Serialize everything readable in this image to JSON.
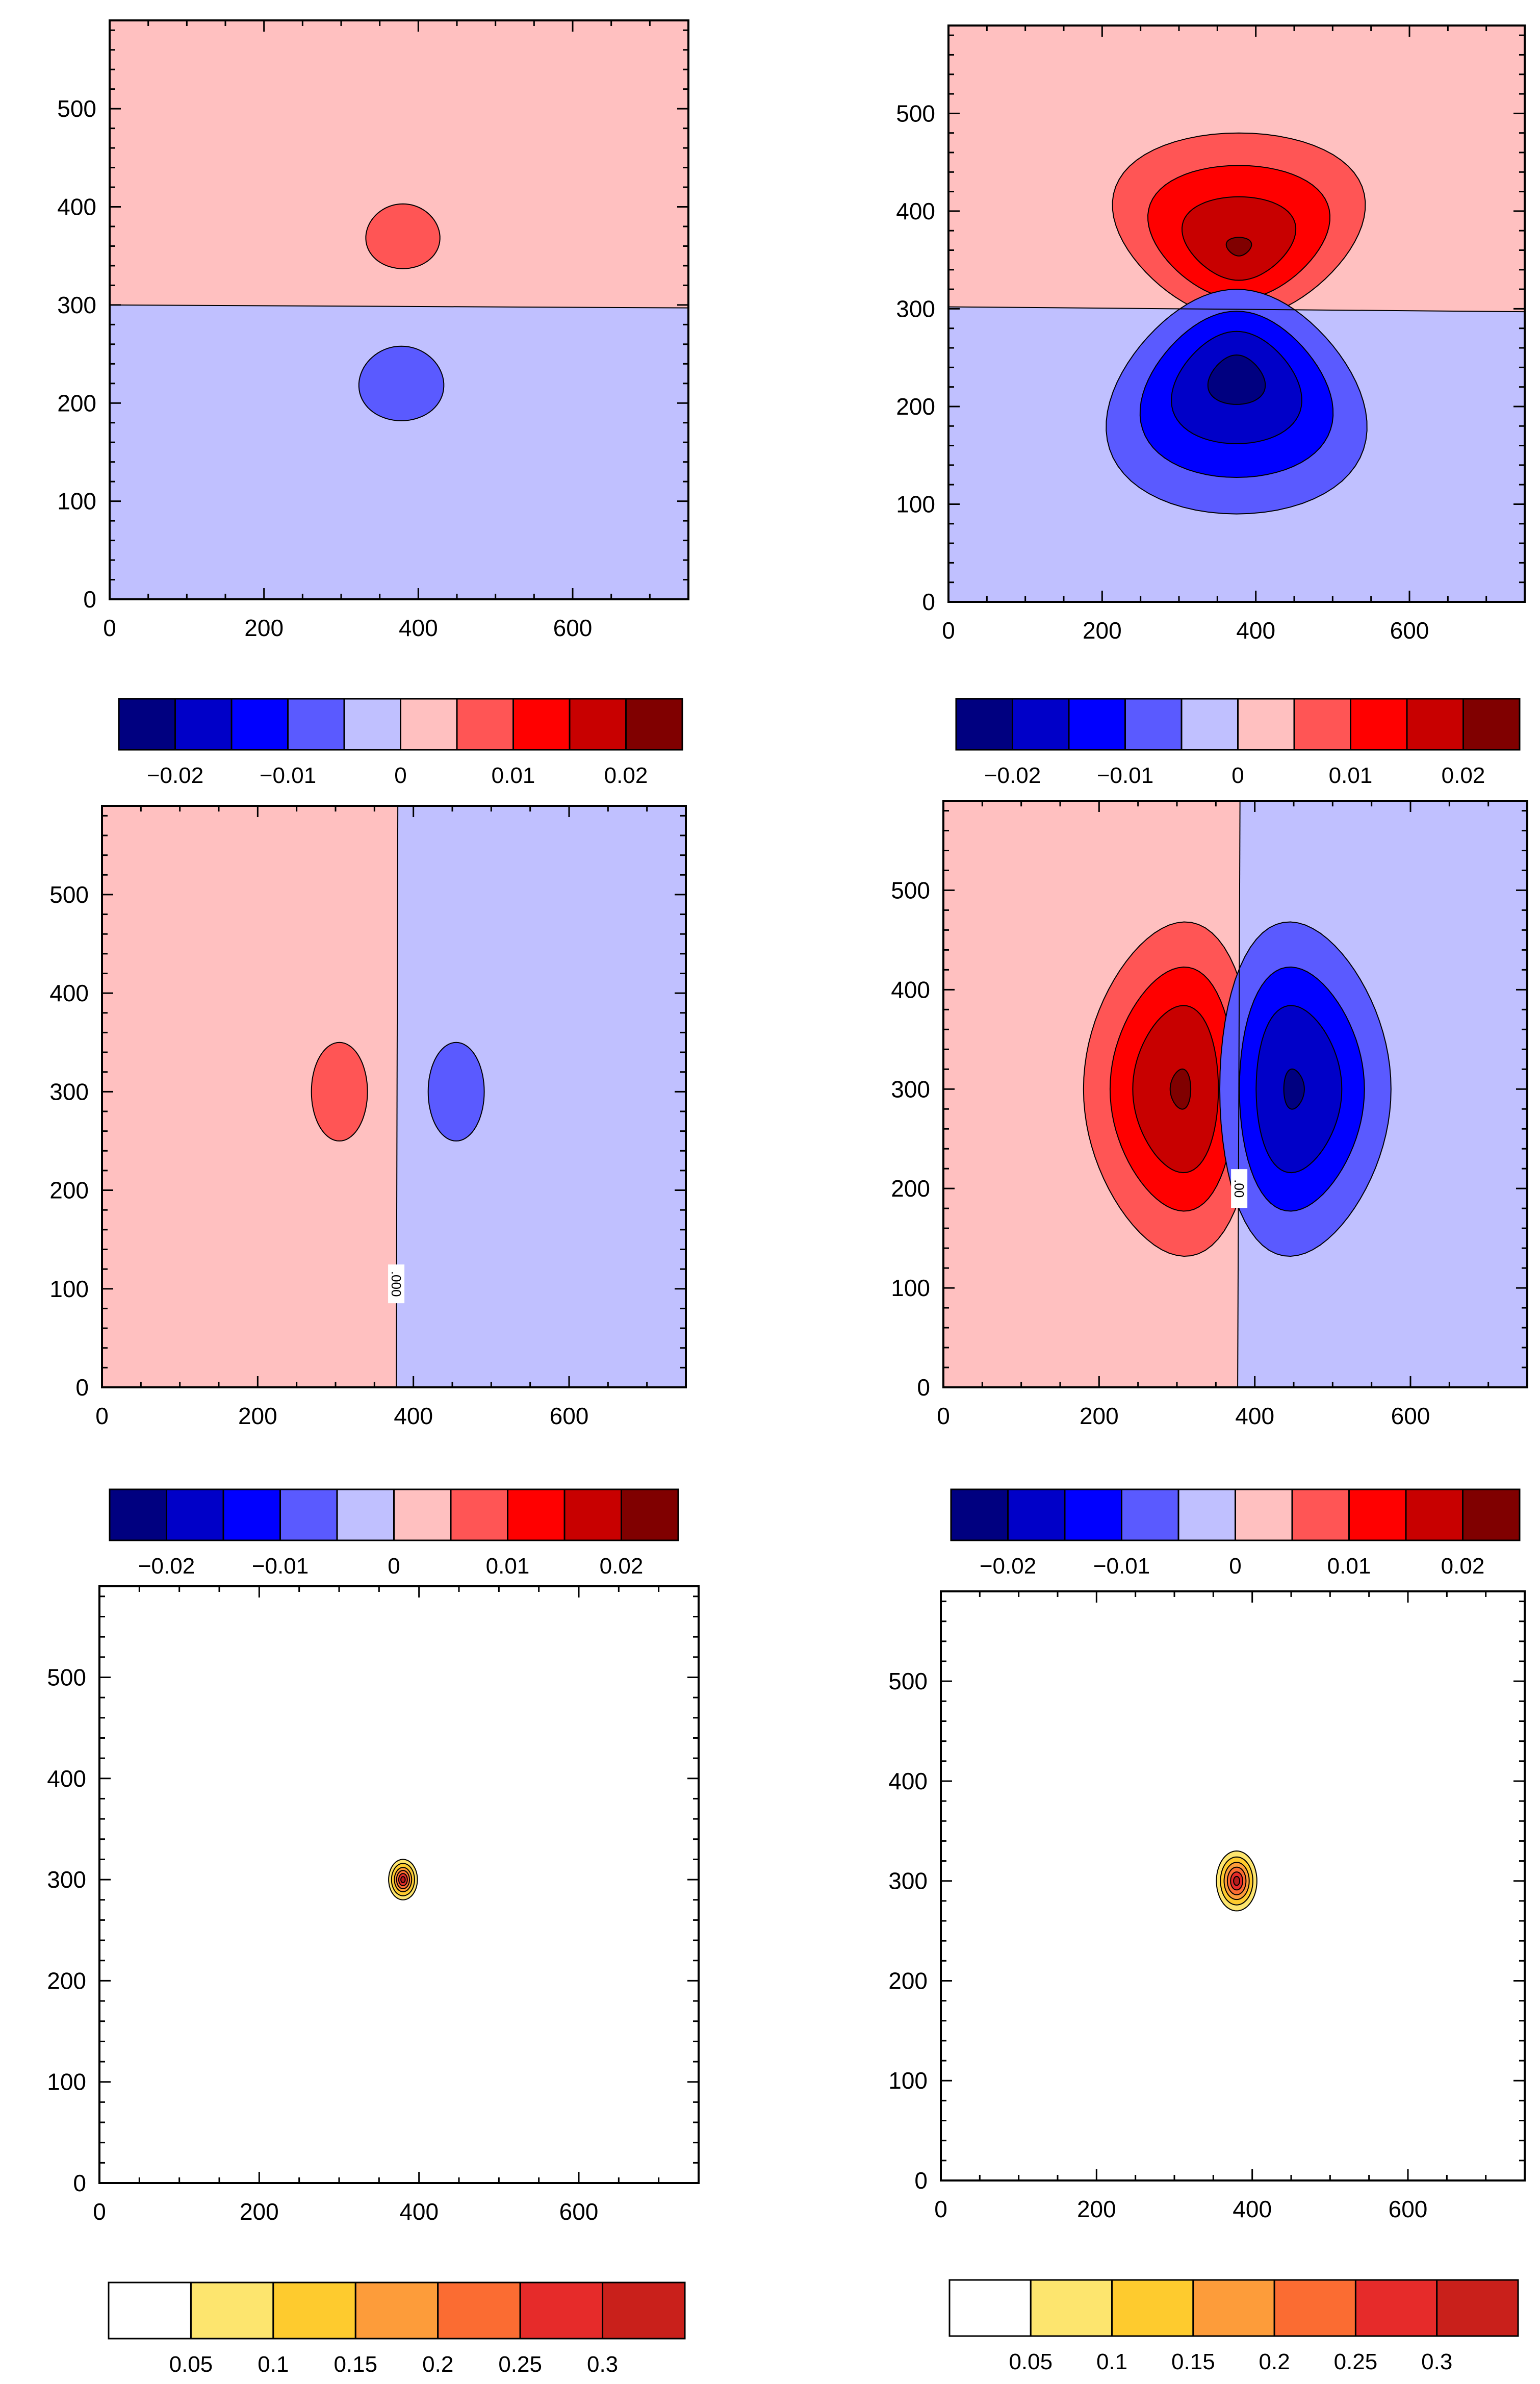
{
  "figure": {
    "panel_count": 6,
    "colorbar_count": 6
  },
  "chart_data": [
    {
      "id": "top-left",
      "type": "contour",
      "title": "",
      "xlabel": "",
      "ylabel": "",
      "xlim": [
        0,
        750
      ],
      "ylim": [
        0,
        590
      ],
      "xticks": [
        "0",
        "200",
        "400",
        "600"
      ],
      "yticks": [
        "0",
        "100",
        "200",
        "300",
        "400",
        "500"
      ],
      "xtick_values": [
        0,
        200,
        400,
        600
      ],
      "ytick_values": [
        0,
        100,
        200,
        300,
        400,
        500
      ],
      "background_split": "horizontal",
      "zero_line": [
        [
          0,
          300
        ],
        [
          750,
          297
        ]
      ],
      "fields": [
        {
          "name": "positive-lobe",
          "center": [
            380,
            370
          ],
          "radius": [
            48,
            33
          ],
          "levels": [
            "#ff5555"
          ]
        },
        {
          "name": "negative-lobe",
          "center": [
            378,
            220
          ],
          "radius": [
            55,
            38
          ],
          "levels": [
            "#5a5aff"
          ]
        }
      ],
      "colorbar": {
        "colors": [
          "#000080",
          "#0000c8",
          "#0000ff",
          "#5a5aff",
          "#c0c0ff",
          "#ffc0c0",
          "#ff5555",
          "#ff0000",
          "#c80000",
          "#800000"
        ],
        "labels": [
          "-0.02",
          "-0.01",
          "0",
          "0.01",
          "0.02"
        ],
        "label_edges": [
          1,
          3,
          5,
          7,
          9
        ]
      }
    },
    {
      "id": "top-right",
      "type": "contour",
      "title": "",
      "xlabel": "",
      "ylabel": "",
      "xlim": [
        0,
        750
      ],
      "ylim": [
        0,
        590
      ],
      "xticks": [
        "0",
        "200",
        "400",
        "600"
      ],
      "yticks": [
        "0",
        "100",
        "200",
        "300",
        "400",
        "500"
      ],
      "xtick_values": [
        0,
        200,
        400,
        600
      ],
      "ytick_values": [
        0,
        100,
        200,
        300,
        400,
        500
      ],
      "background_split": "horizontal",
      "zero_line": [
        [
          0,
          302
        ],
        [
          750,
          297
        ]
      ],
      "fields": [
        {
          "name": "positive-lobe",
          "center": [
            378,
            385
          ],
          "radius": [
            160,
            95
          ],
          "levels": [
            "#ff5555",
            "#ff0000",
            "#c80000",
            "#800000"
          ],
          "scales": [
            1,
            0.72,
            0.45,
            0.1
          ]
        },
        {
          "name": "negative-lobe",
          "center": [
            375,
            205
          ],
          "radius": [
            165,
            115
          ],
          "levels": [
            "#5a5aff",
            "#0000ff",
            "#0000c8",
            "#000080"
          ],
          "scales": [
            1,
            0.74,
            0.5,
            0.22
          ]
        }
      ],
      "colorbar": {
        "colors": [
          "#000080",
          "#0000c8",
          "#0000ff",
          "#5a5aff",
          "#c0c0ff",
          "#ffc0c0",
          "#ff5555",
          "#ff0000",
          "#c80000",
          "#800000"
        ],
        "labels": [
          "-0.02",
          "-0.01",
          "0",
          "0.01",
          "0.02"
        ],
        "label_edges": [
          1,
          3,
          5,
          7,
          9
        ]
      }
    },
    {
      "id": "middle-left",
      "type": "contour",
      "title": "",
      "xlabel": "",
      "ylabel": "",
      "xlim": [
        0,
        750
      ],
      "ylim": [
        0,
        590
      ],
      "xticks": [
        "0",
        "200",
        "400",
        "600"
      ],
      "yticks": [
        "0",
        "100",
        "200",
        "300",
        "400",
        "500"
      ],
      "xtick_values": [
        0,
        200,
        400,
        600
      ],
      "ytick_values": [
        0,
        100,
        200,
        300,
        400,
        500
      ],
      "background_split": "vertical",
      "zero_line": [
        [
          378,
          0
        ],
        [
          380,
          590
        ]
      ],
      "zero_label": ".000",
      "zero_label_pos": [
        378,
        105
      ],
      "fields": [
        {
          "name": "positive-lobe",
          "center": [
            305,
            300
          ],
          "radius": [
            36,
            50
          ],
          "levels": [
            "#ff5555"
          ]
        },
        {
          "name": "negative-lobe",
          "center": [
            455,
            300
          ],
          "radius": [
            36,
            50
          ],
          "levels": [
            "#5a5aff"
          ]
        }
      ],
      "colorbar": {
        "colors": [
          "#000080",
          "#0000c8",
          "#0000ff",
          "#5a5aff",
          "#c0c0ff",
          "#ffc0c0",
          "#ff5555",
          "#ff0000",
          "#c80000",
          "#800000"
        ],
        "labels": [
          "-0.02",
          "-0.01",
          "0",
          "0.01",
          "0.02"
        ],
        "label_edges": [
          1,
          3,
          5,
          7,
          9
        ]
      }
    },
    {
      "id": "middle-right",
      "type": "contour",
      "title": "",
      "xlabel": "",
      "ylabel": "",
      "xlim": [
        0,
        750
      ],
      "ylim": [
        0,
        590
      ],
      "xticks": [
        "0",
        "200",
        "400",
        "600"
      ],
      "yticks": [
        "0",
        "100",
        "200",
        "300",
        "400",
        "500"
      ],
      "xtick_values": [
        0,
        200,
        400,
        600
      ],
      "ytick_values": [
        0,
        100,
        200,
        300,
        400,
        500
      ],
      "background_split": "vertical",
      "zero_line": [
        [
          378,
          0
        ],
        [
          381,
          590
        ]
      ],
      "zero_label": ".00",
      "zero_label_pos": [
        380,
        200
      ],
      "fields": [
        {
          "name": "positive-lobe",
          "center": [
            290,
            300
          ],
          "radius": [
            110,
            165
          ],
          "levels": [
            "#ff5555",
            "#ff0000",
            "#c80000",
            "#800000"
          ],
          "scales": [
            1,
            0.73,
            0.5,
            0.12
          ]
        },
        {
          "name": "negative-lobe",
          "center": [
            465,
            300
          ],
          "radius": [
            110,
            165
          ],
          "levels": [
            "#5a5aff",
            "#0000ff",
            "#0000c8",
            "#000080"
          ],
          "scales": [
            1,
            0.73,
            0.5,
            0.12
          ]
        }
      ],
      "colorbar": {
        "colors": [
          "#000080",
          "#0000c8",
          "#0000ff",
          "#5a5aff",
          "#c0c0ff",
          "#ffc0c0",
          "#ff5555",
          "#ff0000",
          "#c80000",
          "#800000"
        ],
        "labels": [
          "-0.02",
          "-0.01",
          "0",
          "0.01",
          "0.02"
        ],
        "label_edges": [
          1,
          3,
          5,
          7,
          9
        ]
      }
    },
    {
      "id": "bottom-left",
      "type": "contour",
      "title": "",
      "xlabel": "",
      "ylabel": "",
      "xlim": [
        0,
        750
      ],
      "ylim": [
        0,
        590
      ],
      "xticks": [
        "0",
        "200",
        "400",
        "600"
      ],
      "yticks": [
        "0",
        "100",
        "200",
        "300",
        "400",
        "500"
      ],
      "xtick_values": [
        0,
        200,
        400,
        600
      ],
      "ytick_values": [
        0,
        100,
        200,
        300,
        400,
        500
      ],
      "background_split": "none",
      "fields": [
        {
          "name": "plume",
          "center": [
            380,
            300
          ],
          "radius": [
            18,
            20
          ],
          "levels": [
            "#fde56e",
            "#fecb2e",
            "#fd9c3a",
            "#fb6c32",
            "#e62b2a",
            "#b71c1c"
          ],
          "scales": [
            1,
            0.8,
            0.6,
            0.45,
            0.3,
            0.15
          ]
        }
      ],
      "colorbar": {
        "colors": [
          "#ffffff",
          "#fde56e",
          "#fecb2e",
          "#fd9c3a",
          "#fb6c32",
          "#e62b2a",
          "#c9201b"
        ],
        "labels": [
          "0.05",
          "0.1",
          "0.15",
          "0.2",
          "0.25",
          "0.3"
        ],
        "label_edges": [
          1,
          2,
          3,
          4,
          5,
          6
        ]
      }
    },
    {
      "id": "bottom-right",
      "type": "contour",
      "title": "",
      "xlabel": "",
      "ylabel": "",
      "xlim": [
        0,
        750
      ],
      "ylim": [
        0,
        590
      ],
      "xticks": [
        "0",
        "200",
        "400",
        "600"
      ],
      "yticks": [
        "0",
        "100",
        "200",
        "300",
        "400",
        "500"
      ],
      "xtick_values": [
        0,
        200,
        400,
        600
      ],
      "ytick_values": [
        0,
        100,
        200,
        300,
        400,
        500
      ],
      "background_split": "none",
      "fields": [
        {
          "name": "plume",
          "center": [
            380,
            300
          ],
          "radius": [
            26,
            30
          ],
          "levels": [
            "#fde56e",
            "#fecb2e",
            "#fd9c3a",
            "#fb6c32",
            "#e62b2a",
            "#b71c1c"
          ],
          "scales": [
            1,
            0.8,
            0.62,
            0.46,
            0.3,
            0.15
          ]
        }
      ],
      "colorbar": {
        "colors": [
          "#ffffff",
          "#fde56e",
          "#fecb2e",
          "#fd9c3a",
          "#fb6c32",
          "#e62b2a",
          "#c9201b"
        ],
        "labels": [
          "0.05",
          "0.1",
          "0.15",
          "0.2",
          "0.25",
          "0.3"
        ],
        "label_edges": [
          1,
          2,
          3,
          4,
          5,
          6
        ]
      }
    }
  ]
}
